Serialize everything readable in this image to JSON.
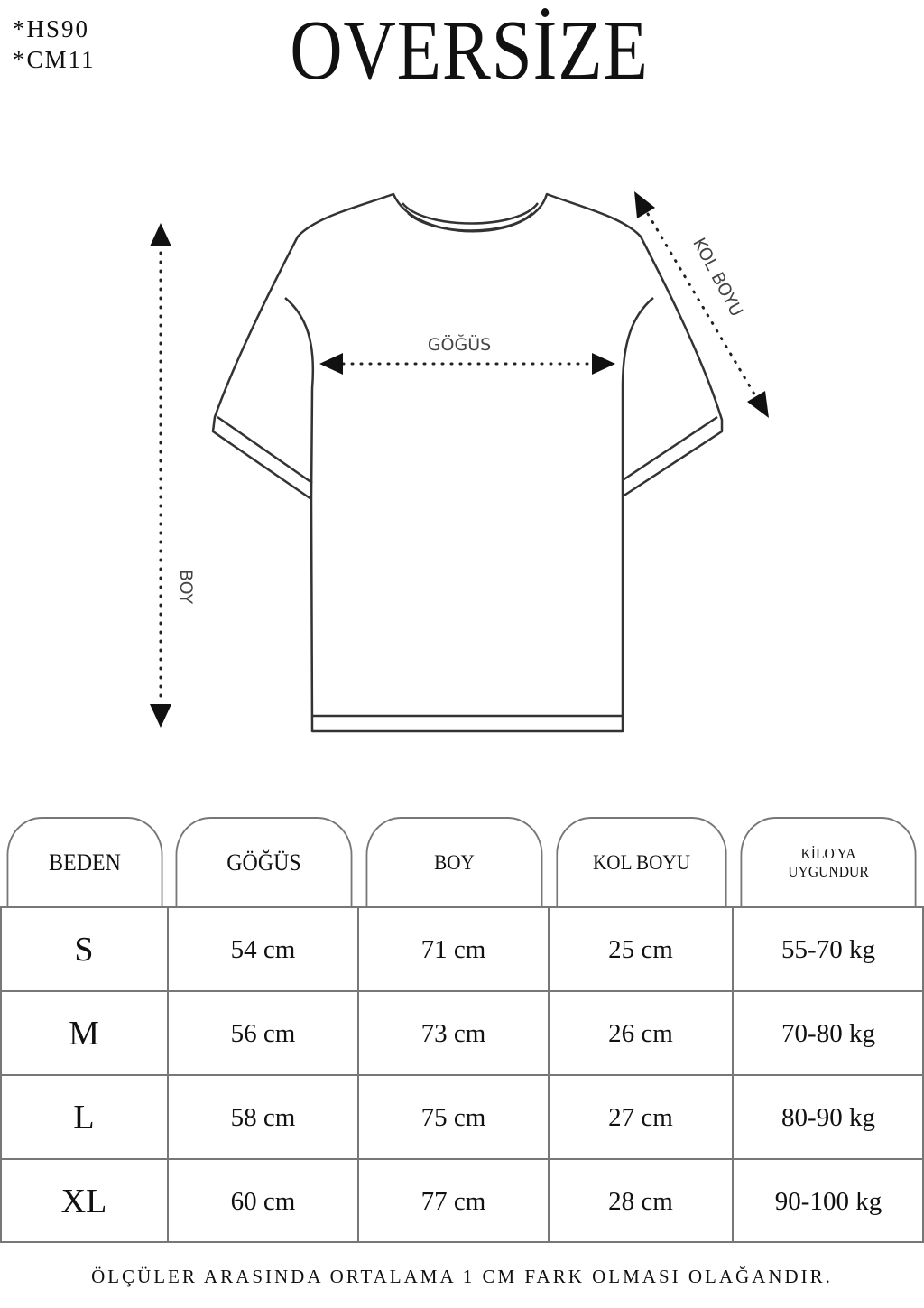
{
  "codes": [
    "*HS90",
    "*CM11"
  ],
  "title": "OVERSİZE",
  "diagram": {
    "chest_label": "GÖĞÜS",
    "length_label": "BOY",
    "sleeve_label": "KOL BOYU"
  },
  "table": {
    "headers": [
      "BEDEN",
      "GÖĞÜS",
      "BOY",
      "KOL BOYU",
      "KİLO'YA\nUYGUNDUR"
    ],
    "rows": [
      [
        "S",
        "54 cm",
        "71 cm",
        "25  cm",
        "55-70 kg"
      ],
      [
        "M",
        "56 cm",
        "73 cm",
        "26 cm",
        "70-80 kg"
      ],
      [
        "L",
        "58 cm",
        "75 cm",
        "27 cm",
        "80-90 kg"
      ],
      [
        "XL",
        "60 cm",
        "77 cm",
        "28 cm",
        "90-100 kg"
      ]
    ]
  },
  "footer": "ÖLÇÜLER ARASINDA ORTALAMA 1 CM FARK OLMASI OLAĞANDIR."
}
